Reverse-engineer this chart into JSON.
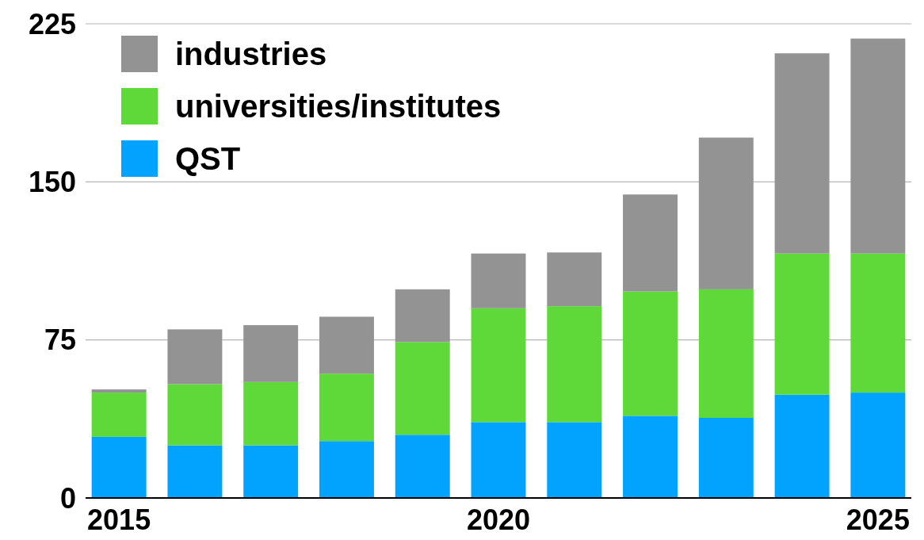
{
  "chart_data": {
    "type": "bar",
    "stacked": true,
    "categories": [
      "2015",
      null,
      null,
      null,
      null,
      "2020",
      null,
      null,
      null,
      null,
      "2025"
    ],
    "series": [
      {
        "name": "QST",
        "color": "#02a3fe",
        "values": [
          29,
          25,
          25,
          27,
          30,
          36,
          36,
          39,
          38,
          49,
          50
        ]
      },
      {
        "name": "universities/institutes",
        "color": "#5fd93a",
        "values": [
          21,
          29,
          30,
          32,
          44,
          54,
          55,
          59,
          61,
          67,
          66
        ]
      },
      {
        "name": "industries",
        "color": "#939393",
        "values": [
          1.5,
          26,
          27,
          27,
          25,
          26,
          25.5,
          46,
          72,
          95,
          102
        ]
      }
    ],
    "ylim": [
      0,
      225
    ],
    "yticks": [
      0,
      75,
      150,
      225
    ],
    "grid": "y",
    "legend": "top left"
  }
}
